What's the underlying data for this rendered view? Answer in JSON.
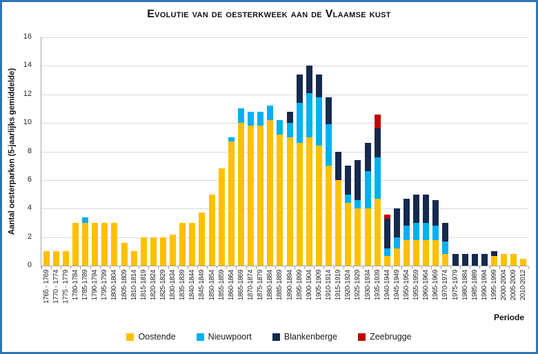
{
  "chart_data": {
    "type": "bar",
    "stacked": true,
    "title": "Evolutie van de oesterkweek aan de Vlaamse kust",
    "ylabel": "Aantal oesterparken (5-jaarlijks gemiddelde)",
    "xlabel": "Periode",
    "ylim": [
      0,
      16
    ],
    "yticks": [
      0,
      2,
      4,
      6,
      8,
      10,
      12,
      14,
      16
    ],
    "grid": true,
    "legend_position": "bottom",
    "categories": [
      "1765 - 1769",
      "1770 - 1774",
      "1775 - 1779",
      "1780-1784",
      "1785-1789",
      "1790-1794",
      "1795-1799",
      "1800-1804",
      "1805-1809",
      "1810-1814",
      "1815-1819",
      "1820-1824",
      "1825-1829",
      "1830-1834",
      "1835-1839",
      "1840-1844",
      "1845-1849",
      "1850-1854",
      "1855-1859",
      "1860-1864",
      "1865-1869",
      "1870-1874",
      "1875-1879",
      "1880-1884",
      "1885-1889",
      "1890-1894",
      "1895-1899",
      "1900-1904",
      "1905-1909",
      "1910-1914",
      "1915-1919",
      "1920-1924",
      "1925-1929",
      "1930-1934",
      "1935-1939",
      "1940-1944",
      "1945-1949",
      "1950-1954",
      "1955-1959",
      "1960-1964",
      "1965-1969",
      "1970-1974",
      "1975-1979",
      "1980-1984",
      "1985-1989",
      "1990-1994",
      "1995-1999",
      "2000-2004",
      "2005-2009",
      "2010-2012"
    ],
    "series": [
      {
        "name": "Oostende",
        "color": "#FFC000",
        "values": [
          1,
          1,
          1,
          3,
          3,
          3,
          3,
          3,
          1.6,
          1,
          2,
          2,
          2,
          2.2,
          3,
          3,
          3.7,
          5,
          6.8,
          8.7,
          10,
          9.8,
          9.8,
          10.2,
          9.2,
          9,
          8.6,
          9,
          8.4,
          7,
          6,
          4.4,
          4,
          4,
          4.7,
          0.7,
          1.2,
          1.8,
          1.8,
          1.8,
          1.8,
          0.8,
          0,
          0,
          0,
          0,
          0.7,
          0.8,
          0.8,
          0.5
        ]
      },
      {
        "name": "Nieuwpoort",
        "color": "#00B0F0",
        "values": [
          0,
          0,
          0,
          0,
          0.4,
          0,
          0,
          0,
          0,
          0,
          0,
          0,
          0,
          0,
          0,
          0,
          0,
          0,
          0,
          0.3,
          1,
          1,
          1,
          1,
          1,
          1,
          2.8,
          3.1,
          3.4,
          2.9,
          0,
          0.6,
          0.6,
          2.6,
          2.9,
          0.5,
          0.8,
          1,
          1.2,
          1.2,
          1,
          0.9,
          0,
          0,
          0,
          0,
          0,
          0,
          0,
          0
        ]
      },
      {
        "name": "Blankenberge",
        "color": "#16294E",
        "values": [
          0,
          0,
          0,
          0,
          0,
          0,
          0,
          0,
          0,
          0,
          0,
          0,
          0,
          0,
          0,
          0,
          0,
          0,
          0,
          0,
          0,
          0,
          0,
          0,
          0,
          0.8,
          2,
          1.9,
          1.6,
          1.9,
          2,
          2,
          2.8,
          2,
          2,
          2.1,
          2,
          1.9,
          2,
          2,
          1.8,
          1.3,
          0.8,
          0.8,
          0.8,
          0.8,
          0.3,
          0,
          0,
          0
        ]
      },
      {
        "name": "Zeebrugge",
        "color": "#C00000",
        "values": [
          0,
          0,
          0,
          0,
          0,
          0,
          0,
          0,
          0,
          0,
          0,
          0,
          0,
          0,
          0,
          0,
          0,
          0,
          0,
          0,
          0,
          0,
          0,
          0,
          0,
          0,
          0,
          0,
          0,
          0,
          0,
          0,
          0,
          0,
          1,
          0.3,
          0,
          0,
          0,
          0,
          0,
          0,
          0,
          0,
          0,
          0,
          0,
          0,
          0,
          0
        ]
      }
    ]
  },
  "colors": {
    "border": "#2E75B6",
    "gridline": "#D9D9D9",
    "axis": "#A6A6A6",
    "text": "#262626"
  }
}
